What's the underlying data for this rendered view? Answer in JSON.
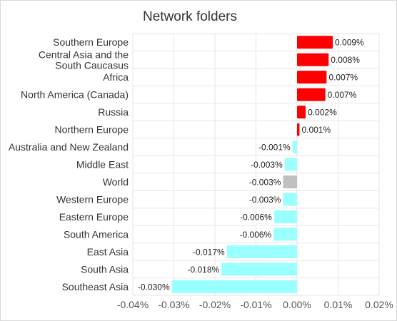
{
  "chart_data": {
    "type": "bar",
    "orientation": "horizontal",
    "title": "Network folders",
    "categories": [
      "Southern Europe",
      "Central Asia and the\nSouth Caucasus",
      "Africa",
      "North America (Canada)",
      "Russia",
      "Northern Europe",
      "Australia and New Zealand",
      "Middle East",
      "World",
      "Western Europe",
      "Eastern Europe",
      "South America",
      "East Asia",
      "South Asia",
      "Southeast Asia"
    ],
    "values": [
      0.009,
      0.008,
      0.007,
      0.007,
      0.002,
      0.001,
      -0.001,
      -0.003,
      -0.003,
      -0.003,
      -0.006,
      -0.006,
      -0.017,
      -0.018,
      -0.03
    ],
    "value_labels": [
      "0.009%",
      "0.008%",
      "0.007%",
      "0.007%",
      "0.002%",
      "0.001%",
      "-0.001%",
      "-0.003%",
      "-0.003%",
      "-0.003%",
      "-0.006%",
      "-0.006%",
      "-0.017%",
      "-0.018%",
      "-0.030%"
    ],
    "bar_values": [
      0.0087,
      0.0077,
      0.0072,
      0.0069,
      0.0021,
      0.0006,
      -0.0011,
      -0.003,
      -0.0034,
      -0.0034,
      -0.0056,
      -0.0057,
      -0.0171,
      -0.0184,
      -0.0305
    ],
    "xlim": [
      -0.04,
      0.02
    ],
    "x_ticks": [
      -0.04,
      -0.03,
      -0.02,
      -0.01,
      0.0,
      0.01,
      0.02
    ],
    "x_tick_labels": [
      "-0.04%",
      "-0.03%",
      "-0.02%",
      "-0.01%",
      "0.00%",
      "0.01%",
      "0.02%"
    ],
    "grid": true,
    "colors": {
      "positive": "#ff0000",
      "negative": "#99ffff",
      "highlight": "#c0c0c0"
    },
    "highlight_category": "World"
  }
}
